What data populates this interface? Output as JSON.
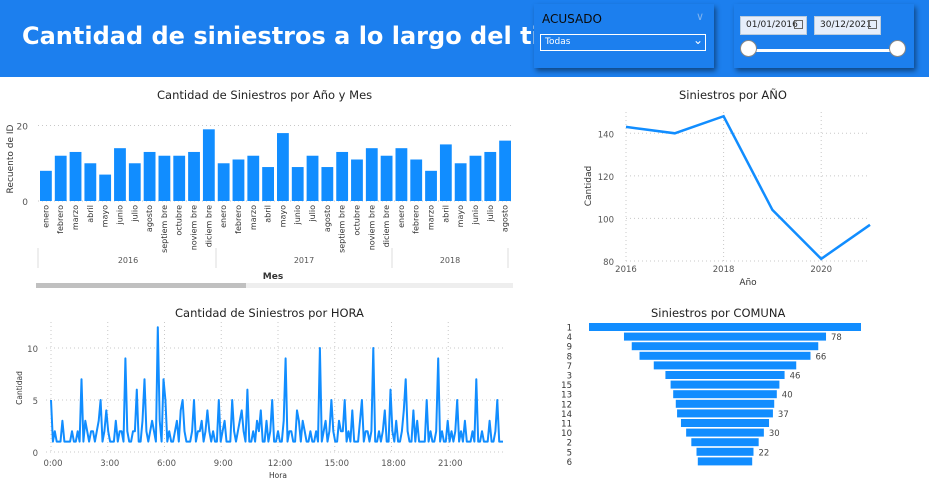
{
  "header": {
    "title": "Cantidad de siniestros a lo largo del tiempo"
  },
  "slicer_acusado": {
    "label": "ACUSADO",
    "selected": "Todas"
  },
  "slicer_fecha": {
    "start": "01/01/2016",
    "end": "30/12/2021"
  },
  "colors": {
    "primary": "#1C7FEE",
    "bar": "#118DFF"
  },
  "chart_data": [
    {
      "type": "bar",
      "title": "Cantidad de Siniestros por Año y Mes",
      "xlabel": "Mes",
      "ylabel": "Recuento de ID",
      "yticks": [
        "0",
        "20"
      ],
      "ylim": [
        0,
        22
      ],
      "categories": [
        "enero",
        "febrero",
        "marzo",
        "abril",
        "mayo",
        "junio",
        "julio",
        "agosto",
        "septiembre",
        "octubre",
        "noviembre",
        "diciembre",
        "enero",
        "febrero",
        "marzo",
        "abril",
        "mayo",
        "junio",
        "julio",
        "agosto",
        "septiembre",
        "octubre",
        "noviembre",
        "diciembre",
        "enero",
        "febrero",
        "marzo",
        "abril",
        "mayo",
        "junio",
        "julio",
        "agosto"
      ],
      "category_labels": [
        "enero",
        "febrero",
        "marzo",
        "abril",
        "mayo",
        "junio",
        "julio",
        "agosto",
        "septiem bre",
        "octubre",
        "noviem bre",
        "diciem bre",
        "enero",
        "febrero",
        "marzo",
        "abril",
        "mayo",
        "junio",
        "julio",
        "agosto",
        "septiem bre",
        "octubre",
        "noviem bre",
        "diciem bre",
        "enero",
        "febrero",
        "marzo",
        "abril",
        "mayo",
        "junio",
        "julio",
        "agosto"
      ],
      "years": [
        "2016",
        "2017",
        "2018"
      ],
      "values": [
        8,
        12,
        13,
        10,
        7,
        14,
        10,
        13,
        12,
        12,
        13,
        19,
        10,
        11,
        12,
        9,
        18,
        9,
        12,
        9,
        13,
        11,
        14,
        12,
        14,
        11,
        8,
        15,
        10,
        12,
        13,
        16
      ],
      "grid": true
    },
    {
      "type": "line",
      "title": "Siniestros por AÑO",
      "xlabel": "Año",
      "ylabel": "Cantidad",
      "x": [
        2016,
        2017,
        2018,
        2019,
        2020,
        2021
      ],
      "values": [
        143,
        140,
        148,
        104,
        81,
        97
      ],
      "xticks": [
        "2016",
        "2018",
        "2020"
      ],
      "yticks": [
        "80",
        "100",
        "120",
        "140"
      ],
      "ylim": [
        80,
        150
      ],
      "grid": true
    },
    {
      "type": "line",
      "title": "Cantidad de Siniestros por HORA",
      "xlabel": "Hora",
      "ylabel": "Cantidad",
      "xticks": [
        "0:00",
        "3:00",
        "6:00",
        "9:00",
        "12:00",
        "15:00",
        "18:00",
        "21:00"
      ],
      "yticks": [
        "0",
        "5",
        "10"
      ],
      "xlim": [
        0,
        24
      ],
      "ylim": [
        0,
        12.5
      ],
      "values": [
        5,
        1,
        2,
        1,
        1,
        1,
        3,
        1,
        1,
        1,
        1,
        2,
        1,
        1,
        2,
        1,
        7,
        1,
        3,
        2,
        1,
        2,
        2,
        1,
        2,
        3,
        5,
        1,
        2,
        4,
        2,
        1,
        1,
        1,
        3,
        1,
        2,
        2,
        1,
        9,
        2,
        1,
        1,
        2,
        2,
        6,
        1,
        1,
        3,
        7,
        2,
        1,
        2,
        3,
        2,
        1,
        12,
        3,
        1,
        7,
        5,
        1,
        2,
        1,
        1,
        2,
        3,
        1,
        4,
        5,
        2,
        1,
        1,
        1,
        2,
        5,
        1,
        2,
        2,
        3,
        1,
        2,
        4,
        2,
        1,
        2,
        1,
        1,
        5,
        1,
        2,
        3,
        1,
        1,
        1,
        5,
        2,
        1,
        2,
        3,
        4,
        2,
        1,
        6,
        1,
        1,
        2,
        1,
        3,
        2,
        4,
        1,
        1,
        3,
        1,
        2,
        5,
        1,
        1,
        2,
        1,
        1,
        3,
        9,
        1,
        2,
        2,
        1,
        1,
        4,
        3,
        1,
        3,
        2,
        1,
        1,
        2,
        1,
        1,
        2,
        1,
        10,
        1,
        2,
        3,
        1,
        2,
        5,
        2,
        1,
        1,
        3,
        2,
        2,
        5,
        1,
        2,
        1,
        4,
        1,
        1,
        1,
        3,
        5,
        1,
        2,
        2,
        1,
        2,
        10,
        1,
        1,
        2,
        1,
        2,
        4,
        1,
        1,
        6,
        2,
        1,
        3,
        1,
        1,
        2,
        4,
        7,
        2,
        1,
        1,
        4,
        1,
        3,
        1,
        1,
        1,
        1,
        5,
        1,
        2,
        1,
        1,
        2,
        9,
        1,
        2,
        1,
        1,
        3,
        1,
        2,
        1,
        2,
        5,
        1,
        2,
        1,
        3,
        1,
        1,
        1,
        2,
        1,
        7,
        1,
        1,
        2,
        1,
        1,
        1,
        3,
        1,
        1,
        2,
        5,
        1,
        1,
        1
      ]
    },
    {
      "type": "bar",
      "title": "Siniestros por COMUNA",
      "categories": [
        "1",
        "4",
        "9",
        "8",
        "7",
        "3",
        "15",
        "13",
        "12",
        "14",
        "11",
        "10",
        "2",
        "5",
        "6"
      ],
      "values": [
        105,
        78,
        72,
        66,
        55,
        46,
        42,
        40,
        38,
        37,
        34,
        30,
        26,
        22,
        21
      ],
      "data_labels": [
        "",
        "78",
        "",
        "66",
        "",
        "46",
        "",
        "40",
        "",
        "37",
        "",
        "30",
        "",
        "22",
        ""
      ]
    }
  ]
}
